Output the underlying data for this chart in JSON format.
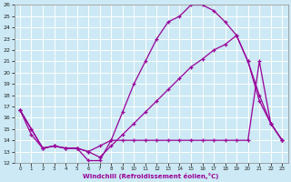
{
  "xlabel": "Windchill (Refroidissement éolien,°C)",
  "background_color": "#cce9f5",
  "line_color": "#990099",
  "grid_color": "#ffffff",
  "xlim": [
    -0.5,
    23.5
  ],
  "ylim": [
    12,
    26
  ],
  "xticks": [
    0,
    1,
    2,
    3,
    4,
    5,
    6,
    7,
    8,
    9,
    10,
    11,
    12,
    13,
    14,
    15,
    16,
    17,
    18,
    19,
    20,
    21,
    22,
    23
  ],
  "yticks": [
    12,
    13,
    14,
    15,
    16,
    17,
    18,
    19,
    20,
    21,
    22,
    23,
    24,
    25,
    26
  ],
  "y_top": [
    16.7,
    15.0,
    13.3,
    13.5,
    13.3,
    13.3,
    12.2,
    12.2,
    14.0,
    16.5,
    19.0,
    21.0,
    23.0,
    24.5,
    25.0,
    26.0,
    26.0,
    25.5,
    24.5,
    23.3,
    21.0,
    17.5,
    15.5,
    14.0
  ],
  "y_mid": [
    16.7,
    15.0,
    13.3,
    13.5,
    13.3,
    13.3,
    13.0,
    12.5,
    13.5,
    14.5,
    15.5,
    16.5,
    17.5,
    18.5,
    19.5,
    20.5,
    21.2,
    22.0,
    22.5,
    23.3,
    21.0,
    18.0,
    15.5,
    14.0
  ],
  "y_bot": [
    16.7,
    14.5,
    13.3,
    13.5,
    13.3,
    13.3,
    13.0,
    13.5,
    14.0,
    14.0,
    14.0,
    14.0,
    14.0,
    14.0,
    14.0,
    14.0,
    14.0,
    14.0,
    14.0,
    14.0,
    14.0,
    21.0,
    15.5,
    14.0
  ]
}
